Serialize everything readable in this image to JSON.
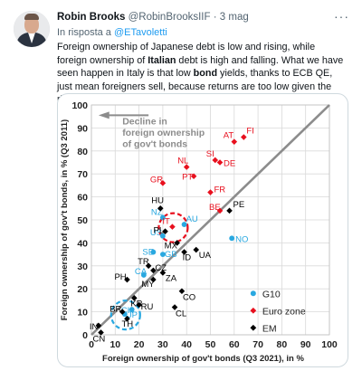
{
  "tweet": {
    "name": "Robin Brooks",
    "handle": "@RobinBrooksIIF",
    "separator": "·",
    "time": "3 mag",
    "more": "···",
    "reply_prefix": "In risposta a",
    "reply_to": "@ETavoletti",
    "text_1": "Foreign ownership of Japanese debt is low and rising, while foreign ownership of ",
    "text_bold_1": "Italian",
    "text_2": " debt is high and falling. What we have seen happen in Italy is that low ",
    "text_bold_2": "bond",
    "text_3": " yields, thanks to ECB QE, just mean foreigners sell, because returns are too low given the risks..."
  },
  "chart_data": {
    "type": "scatter",
    "xlabel": "Foreign ownership of gov't bonds (Q3 2021), in %",
    "ylabel": "Foreign ownership of gov't bonds, in % (Q3 2011)",
    "xlim": [
      0,
      100
    ],
    "ylim": [
      0,
      100
    ],
    "xticks": [
      0,
      10,
      20,
      30,
      40,
      50,
      60,
      70,
      80,
      90,
      100
    ],
    "yticks": [
      0,
      10,
      20,
      30,
      40,
      50,
      60,
      70,
      80,
      90,
      100
    ],
    "grid": true,
    "diagonal": true,
    "annotation": "Decline in foreign ownership of gov't bonds",
    "legend_position": "bottom-right",
    "series": [
      {
        "name": "G10",
        "color": "#29a8e0",
        "marker": "circle",
        "points": [
          {
            "label": "NZ",
            "x": 30,
            "y": 51
          },
          {
            "label": "AU",
            "x": 39,
            "y": 48
          },
          {
            "label": "SE",
            "x": 26,
            "y": 36
          },
          {
            "label": "GB",
            "x": 30,
            "y": 35
          },
          {
            "label": "US",
            "x": 30,
            "y": 43
          },
          {
            "label": "NO",
            "x": 59,
            "y": 42
          },
          {
            "label": "CA",
            "x": 22,
            "y": 26
          },
          {
            "label": "CH",
            "x": 17,
            "y": 11
          },
          {
            "label": "JP",
            "x": 14,
            "y": 9
          }
        ]
      },
      {
        "name": "Euro zone",
        "color": "#e8101e",
        "marker": "diamond",
        "points": [
          {
            "label": "FI",
            "x": 64,
            "y": 86
          },
          {
            "label": "AT",
            "x": 60,
            "y": 84
          },
          {
            "label": "SI",
            "x": 52,
            "y": 76
          },
          {
            "label": "DE",
            "x": 54,
            "y": 75
          },
          {
            "label": "NL",
            "x": 40,
            "y": 73
          },
          {
            "label": "PT",
            "x": 43,
            "y": 69
          },
          {
            "label": "GR",
            "x": 30,
            "y": 66
          },
          {
            "label": "FR",
            "x": 50,
            "y": 62
          },
          {
            "label": "BE",
            "x": 54,
            "y": 54
          },
          {
            "label": "IT",
            "x": 34,
            "y": 47
          }
        ]
      },
      {
        "name": "EM",
        "color": "#000000",
        "marker": "diamond",
        "points": [
          {
            "label": "HU",
            "x": 29,
            "y": 55
          },
          {
            "label": "PE",
            "x": 58,
            "y": 54
          },
          {
            "label": "PL",
            "x": 31,
            "y": 45
          },
          {
            "label": "MX",
            "x": 36,
            "y": 40
          },
          {
            "label": "ID",
            "x": 39,
            "y": 36
          },
          {
            "label": "UA",
            "x": 44,
            "y": 37
          },
          {
            "label": "TR",
            "x": 24,
            "y": 30
          },
          {
            "label": "CZ",
            "x": 26,
            "y": 28
          },
          {
            "label": "MY",
            "x": 26,
            "y": 24
          },
          {
            "label": "ZA",
            "x": 30,
            "y": 27
          },
          {
            "label": "PH",
            "x": 15,
            "y": 24
          },
          {
            "label": "KR",
            "x": 18,
            "y": 16
          },
          {
            "label": "CO",
            "x": 38,
            "y": 19
          },
          {
            "label": "CL",
            "x": 35,
            "y": 12
          },
          {
            "label": "BR",
            "x": 13,
            "y": 10
          },
          {
            "label": "RU",
            "x": 20,
            "y": 13
          },
          {
            "label": "TH",
            "x": 15,
            "y": 7
          },
          {
            "label": "IN",
            "x": 3,
            "y": 4
          },
          {
            "label": "CN",
            "x": 4,
            "y": 1
          }
        ]
      }
    ],
    "highlights": [
      {
        "around": "IT",
        "color": "#e8101e"
      },
      {
        "around": "JP",
        "color": "#29a8e0"
      }
    ]
  }
}
